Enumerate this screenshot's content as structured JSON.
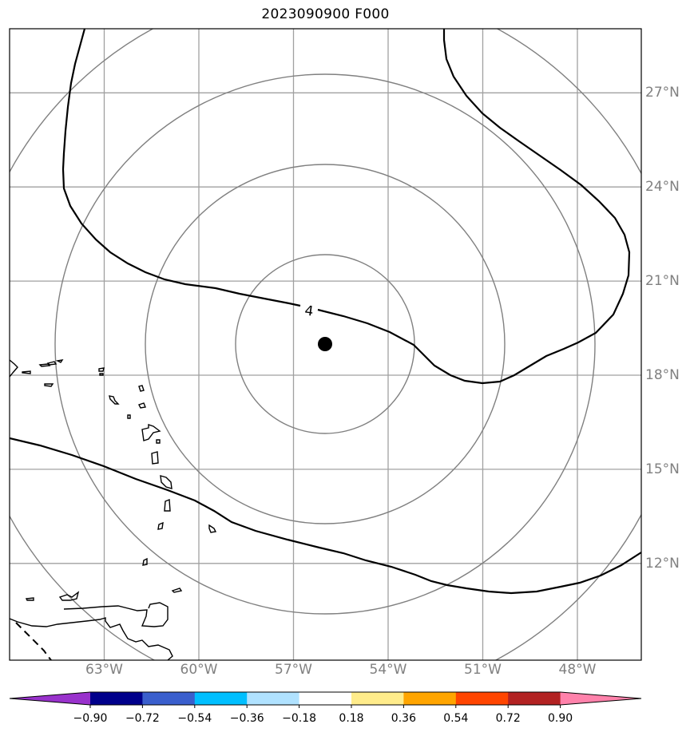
{
  "title": "2023090900 F000",
  "map": {
    "lon_ticks": [
      {
        "label": "63°W",
        "lon": -63
      },
      {
        "label": "60°W",
        "lon": -60
      },
      {
        "label": "57°W",
        "lon": -57
      },
      {
        "label": "54°W",
        "lon": -54
      },
      {
        "label": "51°W",
        "lon": -51
      },
      {
        "label": "48°W",
        "lon": -48
      }
    ],
    "lat_ticks": [
      {
        "label": "27°N",
        "lat": 27
      },
      {
        "label": "24°N",
        "lat": 24
      },
      {
        "label": "21°N",
        "lat": 21
      },
      {
        "label": "18°N",
        "lat": 18
      },
      {
        "label": "15°N",
        "lat": 15
      },
      {
        "label": "12°N",
        "lat": 12
      }
    ],
    "storm_center": {
      "lon": -56,
      "lat": 19
    },
    "contour_label": "4",
    "gridline_color": "#a0a0a0",
    "range_ring_color": "#808080",
    "coastline_color": "#000000"
  },
  "colorbar": {
    "colors": [
      "#9932CC",
      "#00008B",
      "#3A5FCD",
      "#00BFFF",
      "#B0E2FF",
      "#FFFFFF",
      "#FFEC8B",
      "#FFA500",
      "#FF4500",
      "#B22222",
      "#FF82AB"
    ],
    "tick_labels": [
      "−0.90",
      "−0.72",
      "−0.54",
      "−0.36",
      "−0.18",
      "0.18",
      "0.36",
      "0.54",
      "0.72",
      "0.90"
    ]
  }
}
